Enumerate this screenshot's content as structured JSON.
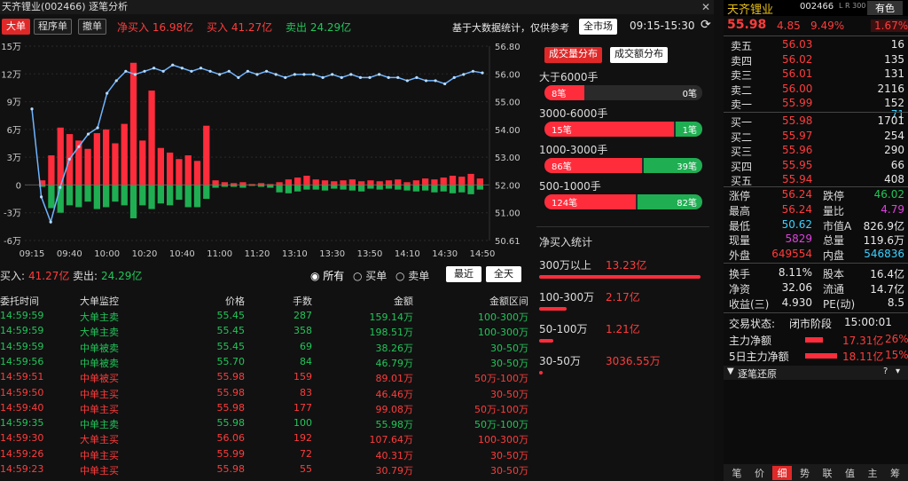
{
  "title": "天齐锂业(002466) 逐笔分析",
  "toolbar": {
    "btn_big": "大单",
    "btn_program": "程序单",
    "btn_ladder": "撤单",
    "net_buy": "净买入 16.98亿",
    "buy": "买入 41.27亿",
    "sell": "卖出 24.29亿",
    "note": "基于大数据统计，仅供参考",
    "market_btn": "全市场",
    "time_range": "09:15-15:30"
  },
  "chart_data": {
    "type": "bar",
    "x_ticks": [
      "09:15",
      "09:40",
      "10:00",
      "10:20",
      "10:40",
      "11:00",
      "11:20",
      "13:10",
      "13:30",
      "13:50",
      "14:10",
      "14:30",
      "14:50"
    ],
    "y_left_ticks": [
      "15万",
      "12万",
      "9万",
      "6万",
      "3万",
      "0",
      "-3万",
      "-6万"
    ],
    "y_left_range": [
      -6,
      15
    ],
    "y_right_ticks": [
      "56.80",
      "56.00",
      "55.00",
      "54.00",
      "53.00",
      "52.00",
      "51.00",
      "50.61"
    ],
    "y_right_range": [
      50.61,
      56.8
    ],
    "bar_values": [
      0.5,
      3.2,
      6.2,
      5.5,
      4.8,
      3.9,
      5.6,
      6.0,
      4.5,
      6.6,
      13.2,
      4.8,
      10.2,
      4.0,
      3.5,
      2.8,
      3.2,
      2.6,
      6.4,
      0.5,
      0.3,
      0.2,
      0.3,
      0.1,
      0.2,
      0.1,
      0.3,
      0.6,
      0.8,
      1.0,
      0.6,
      0.5,
      0.4,
      0.5,
      0.6,
      0.4,
      0.5,
      0.4,
      0.5,
      0.6,
      0.3,
      0.5,
      0.7,
      0.6,
      0.8,
      1.0,
      0.9,
      1.2,
      0.7
    ],
    "bar_neg": [
      -0.2,
      -2.5,
      -3.0,
      -2.2,
      -2.4,
      -1.8,
      -2.6,
      -2.4,
      -1.8,
      -2.2,
      -3.6,
      -2.2,
      -2.6,
      -2.0,
      -2.2,
      -1.6,
      -2.4,
      -2.4,
      -1.5,
      -0.3,
      -0.2,
      -0.2,
      -0.3,
      -0.1,
      -0.2,
      -0.3,
      -0.8,
      -0.9,
      -0.7,
      -0.5,
      -0.5,
      -0.6,
      -0.4,
      -0.5,
      -0.6,
      -0.7,
      -0.4,
      -0.5,
      -0.4,
      -0.5,
      -0.6,
      -0.7,
      -0.6,
      -0.8,
      -0.7,
      -0.9,
      -0.8,
      -1.0,
      -0.5
    ],
    "price_line": [
      54.8,
      52.0,
      51.2,
      52.3,
      53.2,
      53.6,
      54.0,
      54.2,
      55.3,
      55.7,
      56.0,
      55.9,
      56.0,
      56.1,
      56.0,
      56.2,
      56.1,
      56.0,
      56.1,
      56.0,
      55.9,
      56.0,
      55.8,
      56.0,
      55.9,
      56.0,
      55.9,
      55.8,
      55.9,
      55.9,
      55.9,
      55.8,
      55.9,
      55.8,
      55.9,
      55.8,
      55.8,
      55.9,
      55.8,
      55.8,
      55.7,
      55.8,
      55.7,
      55.7,
      55.6,
      55.8,
      55.9,
      56.0,
      55.95
    ]
  },
  "legend": {
    "buy_label": "买入:",
    "buy_value": "41.27亿",
    "sell_label": "卖出:",
    "sell_value": "24.29亿",
    "radio_all": "所有",
    "radio_buy": "买单",
    "radio_sell": "卖单",
    "btn_recent": "最近",
    "btn_all": "全天"
  },
  "table": {
    "headers": [
      "委托时间",
      "大单监控",
      "价格",
      "手数",
      "金额",
      "金额区间"
    ],
    "rows": [
      [
        "14:59:59",
        "大单主卖",
        "55.45",
        "287",
        "159.14万",
        "100-300万",
        "g"
      ],
      [
        "14:59:59",
        "大单主卖",
        "55.45",
        "358",
        "198.51万",
        "100-300万",
        "g"
      ],
      [
        "14:59:59",
        "中单被卖",
        "55.45",
        "69",
        "38.26万",
        "30-50万",
        "g"
      ],
      [
        "14:59:56",
        "中单被卖",
        "55.70",
        "84",
        "46.79万",
        "30-50万",
        "g"
      ],
      [
        "14:59:51",
        "中单被买",
        "55.98",
        "159",
        "89.01万",
        "50万-100万",
        "r"
      ],
      [
        "14:59:50",
        "中单主买",
        "55.98",
        "83",
        "46.46万",
        "30-50万",
        "r"
      ],
      [
        "14:59:40",
        "中单主买",
        "55.98",
        "177",
        "99.08万",
        "50万-100万",
        "r"
      ],
      [
        "14:59:35",
        "中单主卖",
        "55.98",
        "100",
        "55.98万",
        "50万-100万",
        "g"
      ],
      [
        "14:59:30",
        "大单主买",
        "56.06",
        "192",
        "107.64万",
        "100-300万",
        "r"
      ],
      [
        "14:59:26",
        "中单主买",
        "55.99",
        "72",
        "40.31万",
        "30-50万",
        "r"
      ],
      [
        "14:59:23",
        "中单主买",
        "55.98",
        "55",
        "30.79万",
        "30-50万",
        "r"
      ]
    ]
  },
  "dist": {
    "tab_vol": "成交量分布",
    "tab_amt": "成交额分布",
    "groups": [
      {
        "label": "大于6000手",
        "left": "8笔",
        "right": "0笔",
        "ratio": 0.25
      },
      {
        "label": "3000-6000手",
        "left": "15笔",
        "right": "1笔",
        "ratio": 0.82
      },
      {
        "label": "1000-3000手",
        "left": "86笔",
        "right": "39笔",
        "ratio": 0.62
      },
      {
        "label": "500-1000手",
        "left": "124笔",
        "right": "82笔",
        "ratio": 0.58
      }
    ],
    "net_title": "净买入统计",
    "net": [
      {
        "label": "300万以上",
        "value": "13.23亿",
        "ratio": 1.0
      },
      {
        "label": "100-300万",
        "value": "2.17亿",
        "ratio": 0.17
      },
      {
        "label": "50-100万",
        "value": "1.21亿",
        "ratio": 0.09
      },
      {
        "label": "30-50万",
        "value": "3036.55万",
        "ratio": 0.02
      }
    ]
  },
  "quote": {
    "name": "天齐锂业",
    "code": "002466",
    "tags": "L R 300",
    "badge": "有色",
    "price": "55.98",
    "change": "4.85",
    "pct": "9.49%",
    "pct2": "1.67%",
    "asks": [
      [
        "卖五",
        "56.03",
        "16"
      ],
      [
        "卖四",
        "56.02",
        "135"
      ],
      [
        "卖三",
        "56.01",
        "131"
      ],
      [
        "卖二",
        "56.00",
        "2116"
      ],
      [
        "卖一",
        "55.99",
        "152"
      ]
    ],
    "ask_extra": "71",
    "bids": [
      [
        "买一",
        "55.98",
        "1701"
      ],
      [
        "买二",
        "55.97",
        "254"
      ],
      [
        "买三",
        "55.96",
        "290"
      ],
      [
        "买四",
        "55.95",
        "66"
      ],
      [
        "买五",
        "55.94",
        "408"
      ]
    ],
    "stats": [
      [
        "涨停",
        "56.24",
        "跌停",
        "46.02"
      ],
      [
        "最高",
        "56.24",
        "量比",
        "4.79"
      ],
      [
        "最低",
        "50.62",
        "市值A",
        "826.9亿"
      ],
      [
        "现量",
        "5829",
        "总量",
        "119.6万"
      ],
      [
        "外盘",
        "649554",
        "内盘",
        "546836"
      ]
    ],
    "stats2": [
      [
        "换手",
        "8.11%",
        "股本",
        "16.4亿"
      ],
      [
        "净资",
        "32.06",
        "流通",
        "14.7亿"
      ],
      [
        "收益(三)",
        "4.930",
        "PE(动)",
        "8.5"
      ]
    ],
    "trade_status_label": "交易状态:",
    "trade_status": "闭市阶段",
    "trade_time": "15:00:01",
    "main_net_label": "主力净额",
    "main_net": "17.31亿",
    "main_net_pct": "26%",
    "main5_label": "5日主力净额",
    "main5": "18.11亿",
    "main5_pct": "15%",
    "restore": "逐笔还原",
    "tabs": [
      "笔",
      "价",
      "细",
      "势",
      "联",
      "值",
      "主",
      "筹"
    ]
  }
}
